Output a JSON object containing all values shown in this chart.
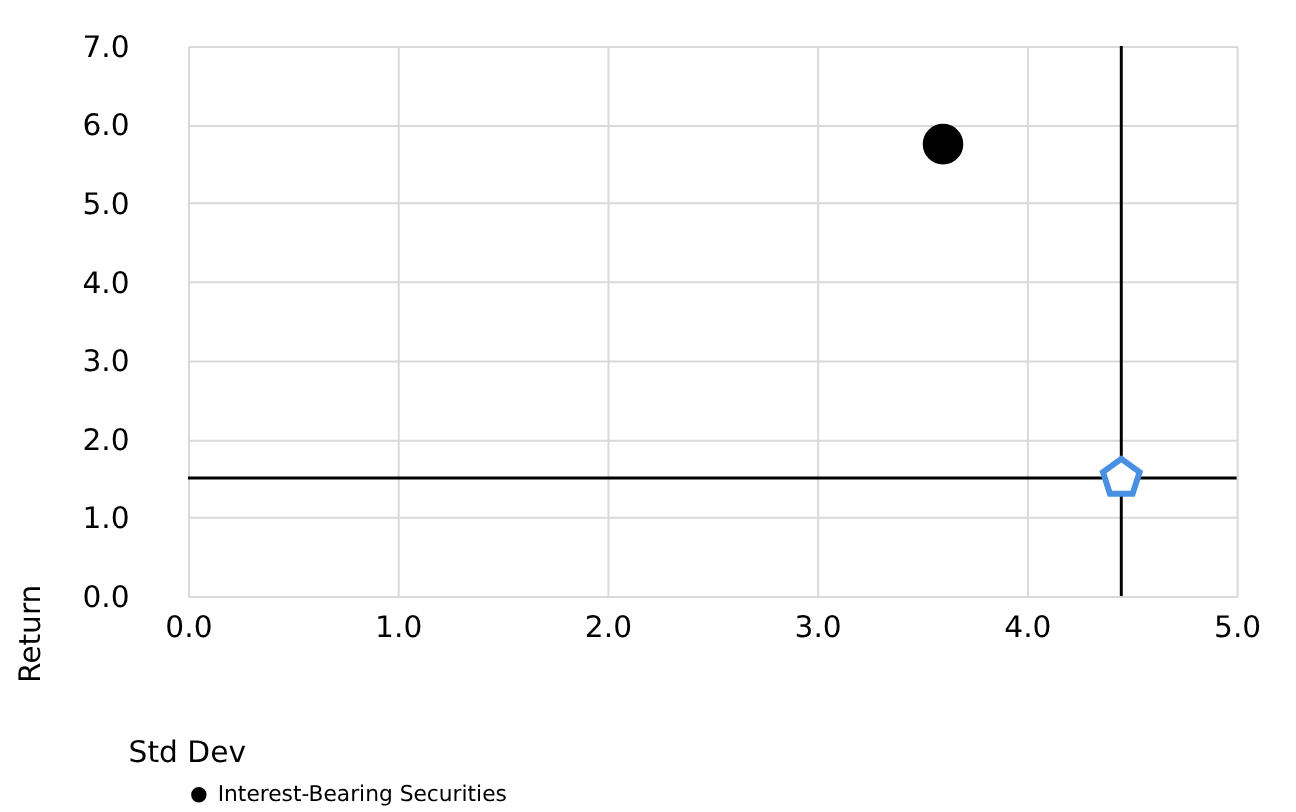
{
  "chart_data": {
    "type": "scatter",
    "xlabel": "Std Dev",
    "ylabel": "Return",
    "xlim": [
      0,
      5
    ],
    "ylim": [
      0,
      7
    ],
    "xticks": [
      {
        "value": 0,
        "label": "0.0"
      },
      {
        "value": 1,
        "label": "1.0"
      },
      {
        "value": 2,
        "label": "2.0"
      },
      {
        "value": 3,
        "label": "3.0"
      },
      {
        "value": 4,
        "label": "4.0"
      },
      {
        "value": 5,
        "label": "5.0"
      }
    ],
    "yticks": [
      {
        "value": 0,
        "label": "0.0"
      },
      {
        "value": 1,
        "label": "1.0"
      },
      {
        "value": 2,
        "label": "2.0"
      },
      {
        "value": 3,
        "label": "3.0"
      },
      {
        "value": 4,
        "label": "4.0"
      },
      {
        "value": 5,
        "label": "5.0"
      },
      {
        "value": 6,
        "label": "6.0"
      },
      {
        "value": 7,
        "label": "7.0"
      }
    ],
    "grid": true,
    "legend": "bottom",
    "series": [
      {
        "name": "Interest-Bearing Securities",
        "color": "#000000",
        "marker": "circle",
        "x": [
          3.6
        ],
        "values": [
          5.75
        ]
      },
      {
        "color": "#4a90e2",
        "x": [
          4.45
        ],
        "values": [
          1.5
        ]
      }
    ],
    "ref_lines": [
      {
        "axis": "x",
        "value": 4.45,
        "color": "#000000"
      },
      {
        "axis": "y",
        "value": 1.5,
        "color": "#000000"
      }
    ]
  }
}
